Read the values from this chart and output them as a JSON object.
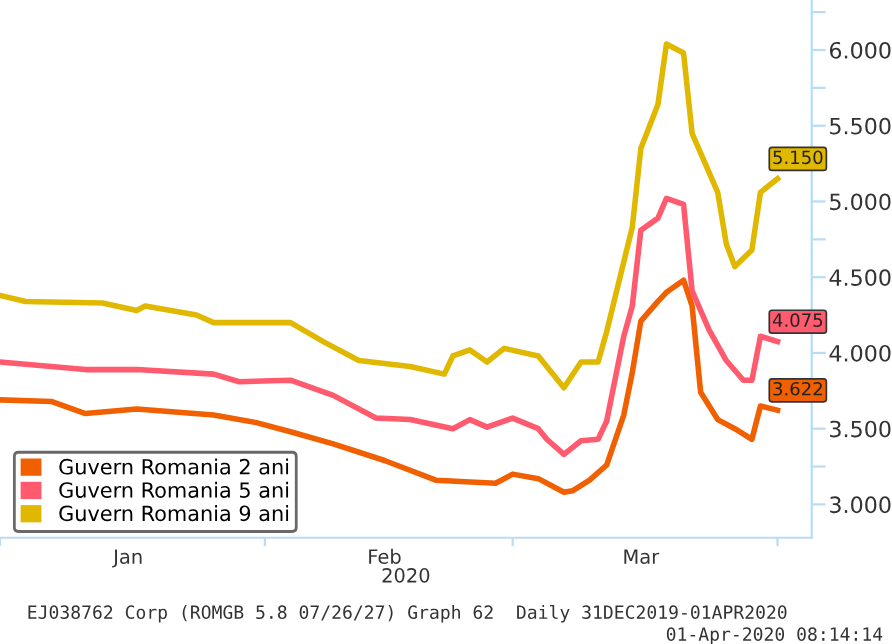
{
  "chart_data": {
    "type": "line",
    "xlabel": "2020",
    "annotations": [
      "EJ038762 Corp (ROMGB 5.8 07/26/27) Graph 62  Daily 31DEC2019-01APR2020",
      "01-Apr-2020 08:14:14"
    ],
    "series": [
      {
        "name": "Guvern Romania 2 ani",
        "color": "#f06000",
        "x": [
          "2020-01-01",
          "2020-01-07",
          "2020-01-11",
          "2020-01-17",
          "2020-01-26",
          "2020-01-31",
          "2020-02-04",
          "2020-02-09",
          "2020-02-15",
          "2020-02-21",
          "2020-02-28",
          "2020-03-01",
          "2020-03-04",
          "2020-03-07",
          "2020-03-08",
          "2020-03-10",
          "2020-03-12",
          "2020-03-14",
          "2020-03-15",
          "2020-03-16",
          "2020-03-18",
          "2020-03-19",
          "2020-03-21",
          "2020-03-22",
          "2020-03-23",
          "2020-03-25",
          "2020-03-27",
          "2020-03-29",
          "2020-03-30",
          "2020-04-01"
        ],
        "values": [
          3.69,
          3.68,
          3.6,
          3.63,
          3.59,
          3.54,
          3.48,
          3.4,
          3.29,
          3.16,
          3.14,
          3.2,
          3.17,
          3.08,
          3.09,
          3.16,
          3.26,
          3.59,
          3.87,
          4.21,
          4.34,
          4.4,
          4.48,
          4.31,
          3.74,
          3.56,
          3.5,
          3.43,
          3.65,
          3.622
        ],
        "value_labels": [
          null,
          null,
          null,
          null,
          null,
          null,
          null,
          null,
          null,
          null,
          null,
          null,
          null,
          null,
          null,
          null,
          null,
          null,
          null,
          null,
          null,
          null,
          null,
          null,
          null,
          null,
          null,
          null,
          null,
          "3.622"
        ]
      },
      {
        "name": "Guvern Romania 5 ani",
        "color": "#ff5a6e",
        "x": [
          "2020-01-01",
          "2020-01-11",
          "2020-01-17",
          "2020-01-26",
          "2020-01-29",
          "2020-02-04",
          "2020-02-09",
          "2020-02-14",
          "2020-02-18",
          "2020-02-23",
          "2020-02-25",
          "2020-02-27",
          "2020-03-01",
          "2020-03-04",
          "2020-03-05",
          "2020-03-07",
          "2020-03-09",
          "2020-03-11",
          "2020-03-12",
          "2020-03-14",
          "2020-03-15",
          "2020-03-16",
          "2020-03-18",
          "2020-03-19",
          "2020-03-21",
          "2020-03-22",
          "2020-03-24",
          "2020-03-26",
          "2020-03-28",
          "2020-03-29",
          "2020-03-30",
          "2020-04-01"
        ],
        "values": [
          3.94,
          3.89,
          3.89,
          3.86,
          3.81,
          3.82,
          3.72,
          3.57,
          3.56,
          3.5,
          3.56,
          3.51,
          3.57,
          3.5,
          3.43,
          3.33,
          3.42,
          3.43,
          3.55,
          4.11,
          4.31,
          4.81,
          4.89,
          5.02,
          4.98,
          4.41,
          4.15,
          3.95,
          3.82,
          3.82,
          4.11,
          4.075
        ],
        "value_labels": [
          null,
          null,
          null,
          null,
          null,
          null,
          null,
          null,
          null,
          null,
          null,
          null,
          null,
          null,
          null,
          null,
          null,
          null,
          null,
          null,
          null,
          null,
          null,
          null,
          null,
          null,
          null,
          null,
          null,
          null,
          null,
          "4.075"
        ]
      },
      {
        "name": "Guvern Romania 9 ani",
        "color": "#e0b800",
        "x": [
          "2020-01-01",
          "2020-01-04",
          "2020-01-13",
          "2020-01-17",
          "2020-01-18",
          "2020-01-24",
          "2020-01-26",
          "2020-02-04",
          "2020-02-08",
          "2020-02-12",
          "2020-02-18",
          "2020-02-22",
          "2020-02-23",
          "2020-02-25",
          "2020-02-27",
          "2020-02-29",
          "2020-03-04",
          "2020-03-07",
          "2020-03-09",
          "2020-03-11",
          "2020-03-12",
          "2020-03-15",
          "2020-03-16",
          "2020-03-18",
          "2020-03-19",
          "2020-03-21",
          "2020-03-22",
          "2020-03-25",
          "2020-03-26",
          "2020-03-27",
          "2020-03-29",
          "2020-03-30",
          "2020-04-01"
        ],
        "values": [
          4.38,
          4.34,
          4.33,
          4.28,
          4.31,
          4.25,
          4.2,
          4.2,
          4.07,
          3.95,
          3.91,
          3.86,
          3.98,
          4.02,
          3.94,
          4.03,
          3.98,
          3.77,
          3.94,
          3.94,
          4.14,
          4.83,
          5.35,
          5.64,
          6.04,
          5.98,
          5.45,
          5.06,
          4.72,
          4.57,
          4.68,
          5.06,
          5.15
        ],
        "value_labels": [
          null,
          null,
          null,
          null,
          null,
          null,
          null,
          null,
          null,
          null,
          null,
          null,
          null,
          null,
          null,
          null,
          null,
          null,
          null,
          null,
          null,
          null,
          null,
          null,
          null,
          null,
          null,
          null,
          null,
          null,
          null,
          null,
          "5.150"
        ]
      }
    ],
    "xlim": [
      "2020-01-01",
      "2020-04-05"
    ],
    "xticks": [
      {
        "value": "2020-01-01",
        "label": null
      },
      {
        "value": "2020-01-16",
        "label": "Jan"
      },
      {
        "value": "2020-02-01",
        "label": null
      },
      {
        "value": "2020-02-15",
        "label": "Feb"
      },
      {
        "value": "2020-03-01",
        "label": null
      },
      {
        "value": "2020-03-16",
        "label": "Mar"
      },
      {
        "value": "2020-04-01",
        "label": null
      }
    ],
    "ylim": [
      2.78,
      6.33
    ],
    "yticks": [
      {
        "value": 3,
        "label": "3.000"
      },
      {
        "value": 3.25,
        "label": null
      },
      {
        "value": 3.5,
        "label": "3.500"
      },
      {
        "value": 3.75,
        "label": null
      },
      {
        "value": 4,
        "label": "4.000"
      },
      {
        "value": 4.25,
        "label": null
      },
      {
        "value": 4.5,
        "label": "4.500"
      },
      {
        "value": 4.75,
        "label": null
      },
      {
        "value": 5,
        "label": "5.000"
      },
      {
        "value": 5.25,
        "label": null
      },
      {
        "value": 5.5,
        "label": "5.500"
      },
      {
        "value": 5.75,
        "label": null
      },
      {
        "value": 6,
        "label": "6.000"
      },
      {
        "value": 6.25,
        "label": null
      }
    ],
    "grid": false,
    "legend": "bottom left",
    "line_style": "solid",
    "marker": "none"
  }
}
